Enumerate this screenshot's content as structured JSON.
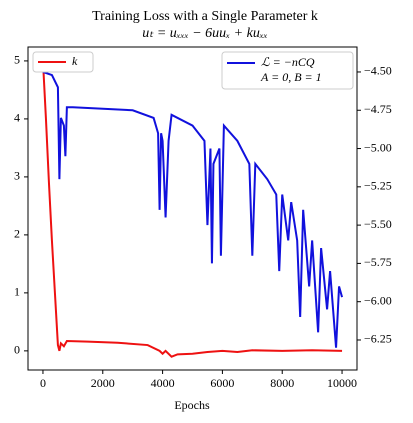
{
  "chart_data": {
    "type": "line",
    "title": "Training Loss with a Single Parameter k",
    "subtitle": "uₜ = uₓₓₓ − 6uuₓ + kuₓₓ",
    "xlabel": "Epochs",
    "annotation": "A = 0, B = 1",
    "xlim": [
      -500,
      10500
    ],
    "xticks": [
      0,
      2000,
      4000,
      6000,
      8000,
      10000
    ],
    "ylim": [
      -0.33,
      5.24
    ],
    "yticks": [
      0,
      1,
      2,
      3,
      4,
      5
    ],
    "y2lim": [
      -6.446,
      -4.337
    ],
    "y2ticks": [
      {
        "value": -4.5,
        "label": "−4.50"
      },
      {
        "value": -4.75,
        "label": "−4.75"
      },
      {
        "value": -5.0,
        "label": "−5.00"
      },
      {
        "value": -5.25,
        "label": "−5.25"
      },
      {
        "value": -5.5,
        "label": "−5.50"
      },
      {
        "value": -5.75,
        "label": "−5.75"
      },
      {
        "value": -6.0,
        "label": "−6.00"
      },
      {
        "value": -6.25,
        "label": "−6.25"
      }
    ],
    "series": [
      {
        "name": "k",
        "color": "#ee1111",
        "axis": "y",
        "x": [
          0,
          100,
          200,
          300,
          400,
          500,
          550,
          600,
          700,
          800,
          1500,
          2500,
          3500,
          3900,
          4000,
          4100,
          4300,
          4500,
          5000,
          5500,
          6000,
          6500,
          7000,
          8000,
          9000,
          10000
        ],
        "values": [
          5.0,
          4.0,
          2.9,
          1.9,
          1.0,
          0.1,
          0.0,
          0.13,
          0.08,
          0.17,
          0.16,
          0.14,
          0.1,
          0.0,
          -0.05,
          0.0,
          -0.1,
          -0.06,
          -0.05,
          -0.02,
          0.0,
          -0.02,
          0.01,
          0.0,
          0.01,
          0.0
        ]
      },
      {
        "name": "ℒ = −nCQ",
        "color": "#1111dd",
        "axis": "y2",
        "x": [
          0,
          300,
          500,
          550,
          600,
          700,
          750,
          800,
          1000,
          3000,
          3700,
          3850,
          3900,
          3950,
          4000,
          4100,
          4200,
          4300,
          5000,
          5400,
          5500,
          5600,
          5650,
          5700,
          5900,
          5950,
          6050,
          6500,
          6900,
          7000,
          7100,
          7500,
          7800,
          7900,
          8000,
          8200,
          8300,
          8500,
          8600,
          8700,
          8900,
          9000,
          9200,
          9300,
          9500,
          9600,
          9800,
          9900,
          10000
        ],
        "values": [
          -4.5,
          -4.52,
          -4.6,
          -5.2,
          -4.8,
          -4.85,
          -5.05,
          -4.73,
          -4.73,
          -4.75,
          -4.8,
          -4.9,
          -5.4,
          -4.9,
          -4.95,
          -5.45,
          -4.95,
          -4.78,
          -4.85,
          -4.95,
          -5.5,
          -5.0,
          -5.75,
          -5.1,
          -5.0,
          -5.7,
          -4.85,
          -4.95,
          -5.1,
          -5.7,
          -5.1,
          -5.2,
          -5.3,
          -5.8,
          -5.3,
          -5.6,
          -5.35,
          -5.6,
          -6.1,
          -5.4,
          -5.9,
          -5.6,
          -6.2,
          -5.65,
          -6.05,
          -5.8,
          -6.3,
          -5.9,
          -5.97
        ]
      }
    ]
  }
}
